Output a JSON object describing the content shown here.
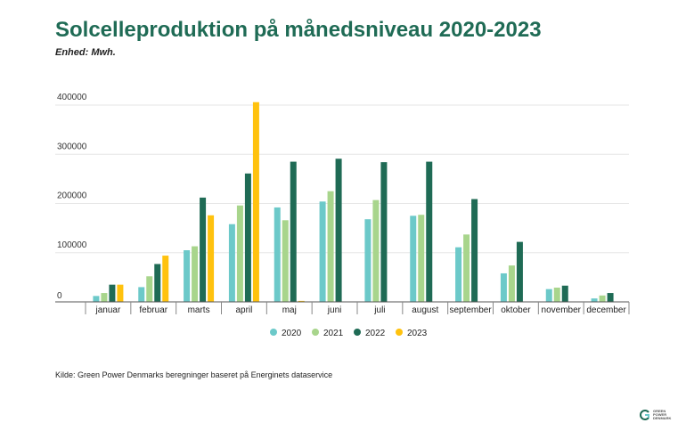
{
  "title": "Solcelleproduktion på månedsniveau 2020-2023",
  "subtitle": "Enhed: Mwh.",
  "source": "Kilde: Green Power Denmarks beregninger baseret på Energinets dataservice",
  "logo": {
    "text": "GREEN\nPOWER\nDENMARK",
    "icon": "green-power-denmark-logo-icon"
  },
  "colors": {
    "title": "#1f6b55",
    "2020": "#6cc9c9",
    "2021": "#a8d58c",
    "2022": "#1f6b55",
    "2023": "#ffc20e"
  },
  "chart_data": {
    "type": "bar",
    "categories": [
      "januar",
      "februar",
      "marts",
      "april",
      "maj",
      "juni",
      "juli",
      "august",
      "september",
      "oktober",
      "november",
      "december"
    ],
    "series": [
      {
        "name": "2020",
        "values": [
          12000,
          30000,
          105000,
          158000,
          192000,
          204000,
          168000,
          175000,
          111000,
          58000,
          26000,
          7000
        ]
      },
      {
        "name": "2021",
        "values": [
          18000,
          52000,
          113000,
          196000,
          166000,
          225000,
          207000,
          177000,
          137000,
          74000,
          29000,
          13000
        ]
      },
      {
        "name": "2022",
        "values": [
          35000,
          77000,
          212000,
          261000,
          285000,
          291000,
          284000,
          285000,
          209000,
          122000,
          33000,
          18000
        ]
      },
      {
        "name": "2023",
        "values": [
          35000,
          94000,
          176000,
          406000,
          2000,
          null,
          null,
          null,
          null,
          null,
          null,
          null
        ]
      }
    ],
    "yticks": [
      "0",
      "100000",
      "200000",
      "300000",
      "400000"
    ],
    "ylim": [
      0,
      420000
    ],
    "grid": true,
    "legend": "bottom-center"
  }
}
